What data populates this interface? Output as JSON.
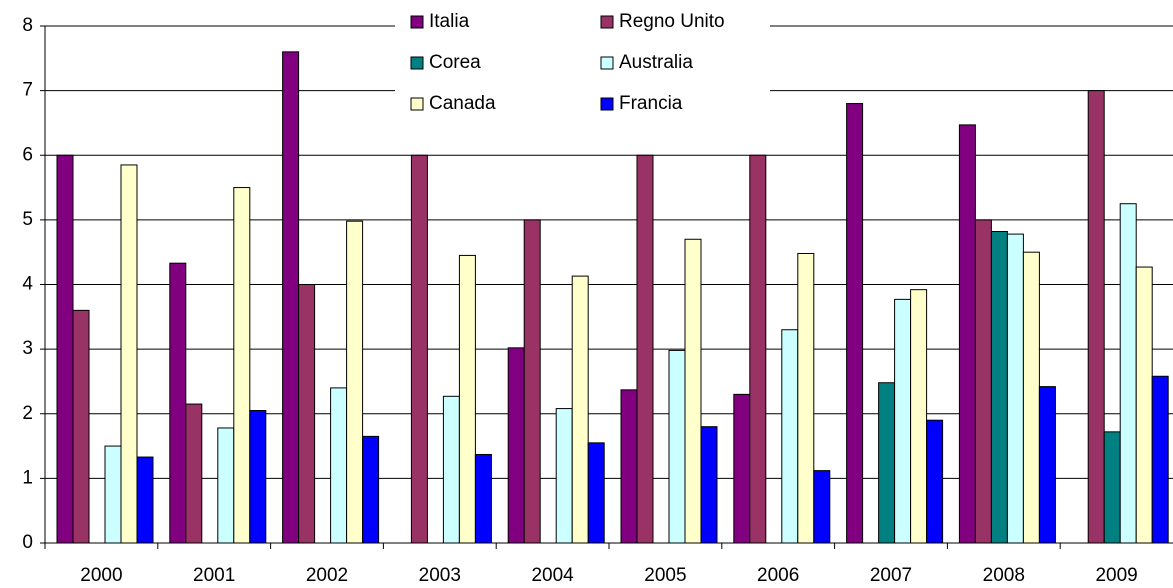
{
  "chart_data": {
    "type": "bar",
    "categories": [
      "2000",
      "2001",
      "2002",
      "2003",
      "2004",
      "2005",
      "2006",
      "2007",
      "2008",
      "2009"
    ],
    "series": [
      {
        "name": "Italia",
        "color": "#800080",
        "values": [
          6.0,
          4.33,
          7.6,
          null,
          3.02,
          2.37,
          2.3,
          6.8,
          6.47,
          null
        ]
      },
      {
        "name": "Regno Unito",
        "color": "#993366",
        "values": [
          3.6,
          2.15,
          4.0,
          6.0,
          5.0,
          6.0,
          6.0,
          null,
          5.0,
          7.0
        ]
      },
      {
        "name": "Corea",
        "color": "#008080",
        "values": [
          null,
          null,
          null,
          null,
          null,
          null,
          null,
          2.48,
          4.82,
          1.72
        ]
      },
      {
        "name": "Australia",
        "color": "#ccffff",
        "values": [
          1.5,
          1.78,
          2.4,
          2.27,
          2.08,
          2.98,
          3.3,
          3.77,
          4.78,
          5.25
        ]
      },
      {
        "name": "Canada",
        "color": "#ffffcc",
        "values": [
          5.85,
          5.5,
          4.98,
          4.45,
          4.13,
          4.7,
          4.48,
          3.92,
          4.5,
          4.27
        ]
      },
      {
        "name": "Francia",
        "color": "#0000ff",
        "values": [
          1.33,
          2.05,
          1.65,
          1.37,
          1.55,
          1.8,
          1.12,
          1.9,
          2.42,
          2.58
        ]
      }
    ],
    "ylim": [
      0,
      8
    ],
    "yticks": [
      0,
      1,
      2,
      3,
      4,
      5,
      6,
      7,
      8
    ],
    "grid": true,
    "legend": "top"
  }
}
